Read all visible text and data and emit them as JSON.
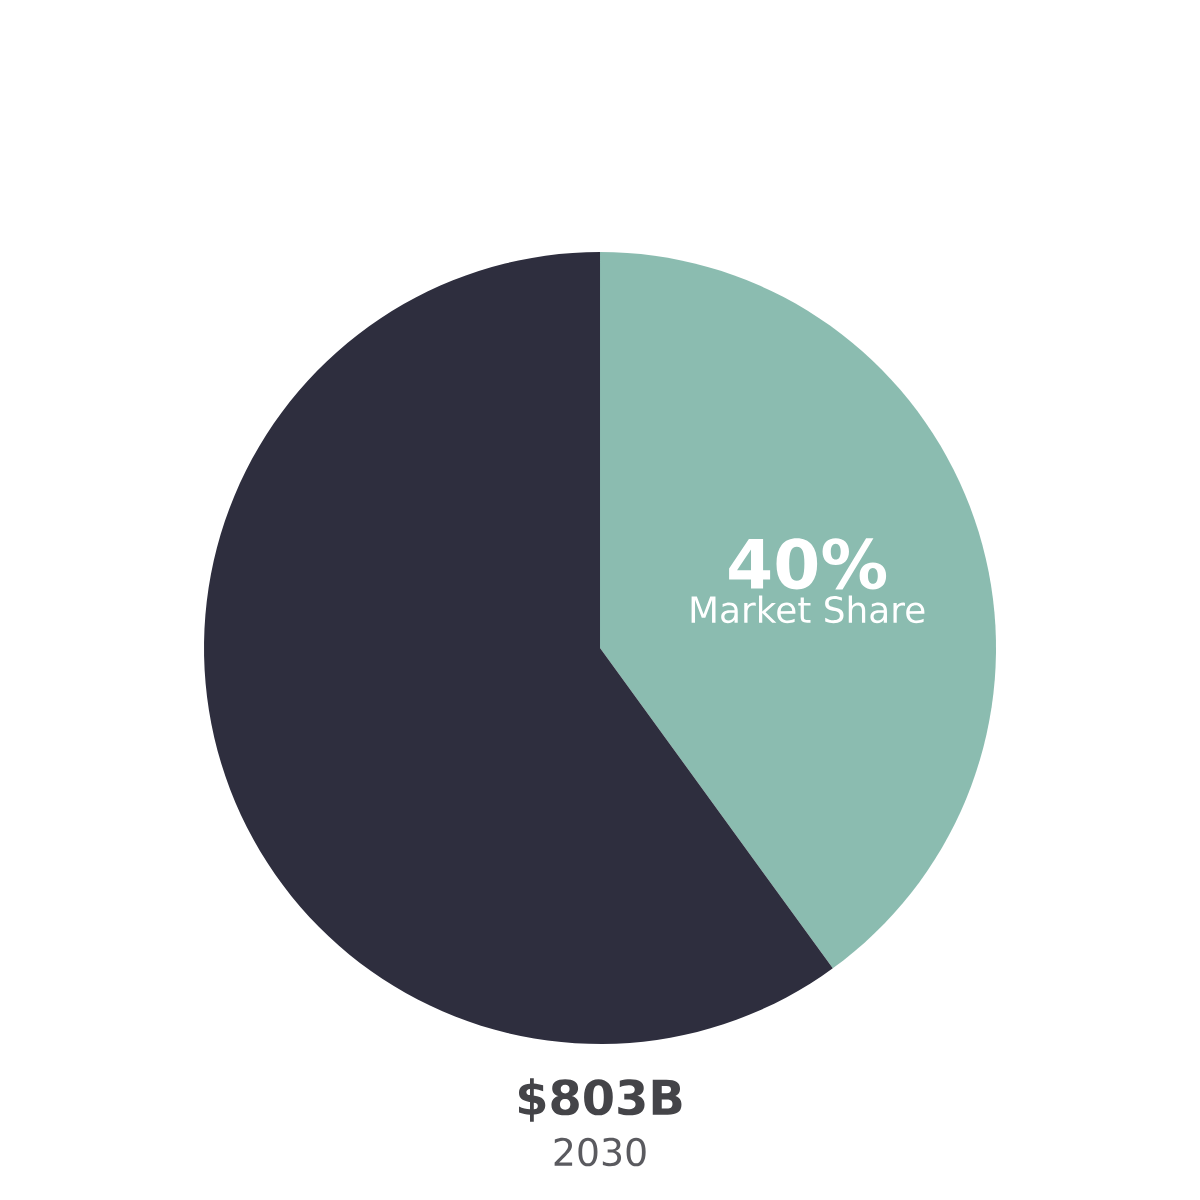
{
  "chart_data": {
    "type": "pie",
    "title": "$803B",
    "subtitle": "2030",
    "categories": [
      "Market Share",
      null
    ],
    "values": [
      40,
      60
    ],
    "value_labels": [
      "40%",
      null
    ],
    "colors": [
      "#8bbcb0",
      "#2e2e3e"
    ]
  }
}
